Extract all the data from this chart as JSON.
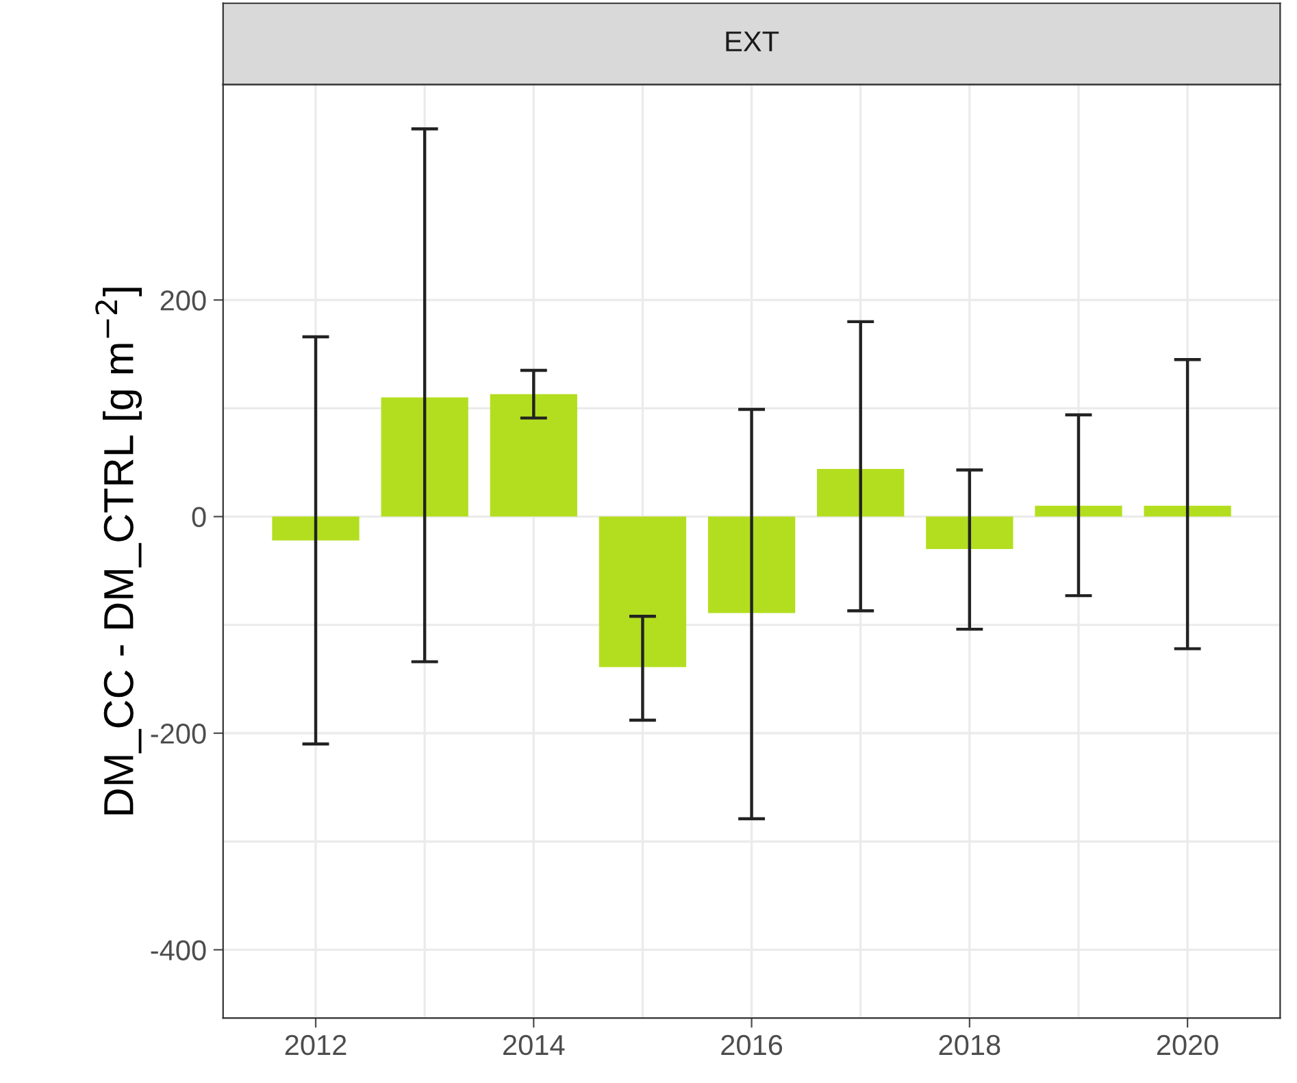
{
  "chart_data": {
    "type": "bar",
    "title": "EXT",
    "ylabel": "DM_CC - DM_CTRL [g m$^{−2}$]",
    "x": [
      2012,
      2013,
      2014,
      2015,
      2016,
      2017,
      2018,
      2019,
      2020
    ],
    "values": [
      -22,
      110,
      113,
      -139,
      -89,
      44,
      -30,
      10,
      10
    ],
    "errors": [
      [
        -210,
        166
      ],
      [
        -134,
        358
      ],
      [
        91,
        135
      ],
      [
        -188,
        -92
      ],
      [
        -279,
        99
      ],
      [
        -87,
        180
      ],
      [
        -104,
        43
      ],
      [
        -73,
        94
      ],
      [
        -122,
        145
      ]
    ],
    "color": "#b3de1f",
    "xlim": [
      2011.15,
      2020.85
    ],
    "xticks": [
      2012,
      2014,
      2016,
      2018,
      2020
    ],
    "ylim": [
      -463,
      399
    ],
    "yticks": [
      -400,
      -200,
      0,
      200
    ],
    "grid": true
  }
}
